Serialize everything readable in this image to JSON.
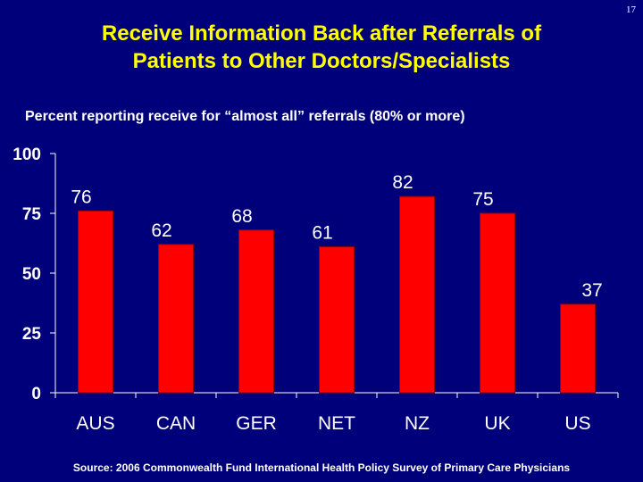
{
  "page_number": "17",
  "title_line1": "Receive Information Back after Referrals of",
  "title_line2": "Patients to Other Doctors/Specialists",
  "subtitle": "Percent reporting receive for “almost all” referrals (80% or more)",
  "source": "Source: 2006 Commonwealth Fund International Health Policy Survey of Primary Care Physicians",
  "colors": {
    "background": "#00007a",
    "bar": "#ff0000",
    "title": "#ffff00",
    "text": "#ffffff"
  },
  "chart_data": {
    "type": "bar",
    "title": "",
    "xlabel": "",
    "ylabel": "",
    "categories": [
      "AUS",
      "CAN",
      "GER",
      "NET",
      "NZ",
      "UK",
      "US"
    ],
    "values": [
      76,
      62,
      68,
      61,
      82,
      75,
      37
    ],
    "ylim": [
      0,
      100
    ],
    "yticks": [
      0,
      25,
      50,
      75,
      100
    ],
    "grid": false,
    "legend": "none"
  }
}
